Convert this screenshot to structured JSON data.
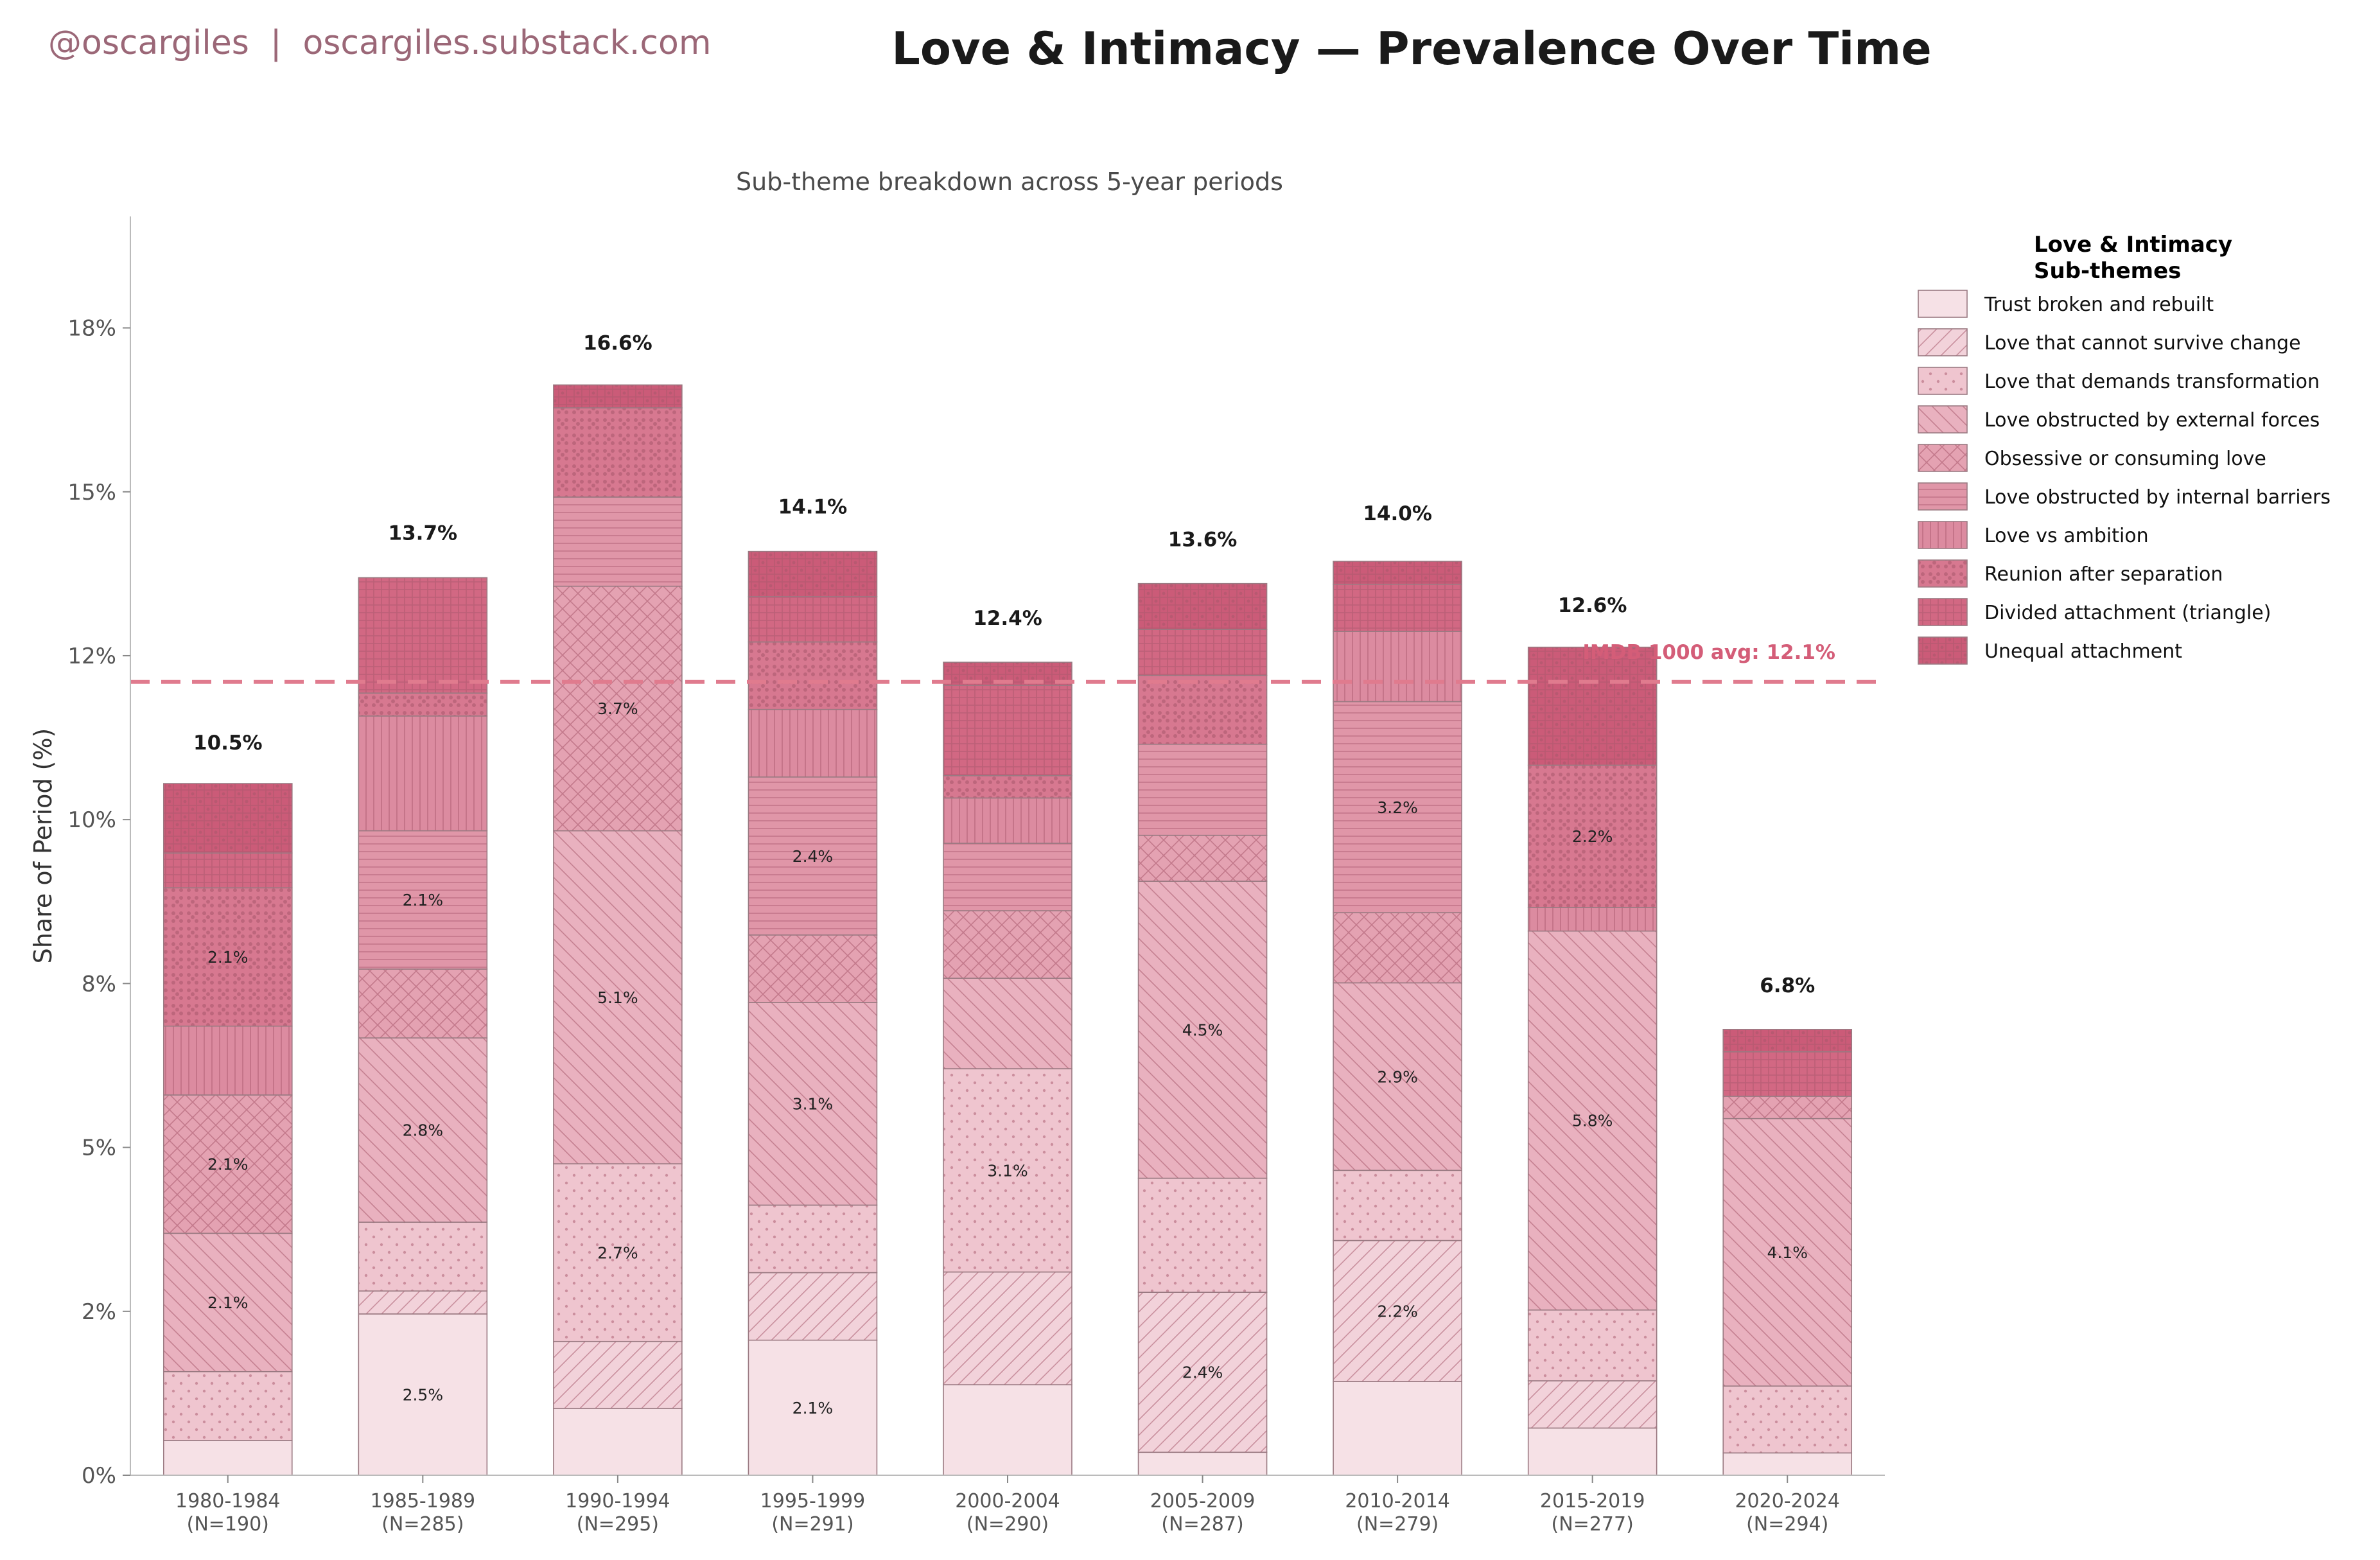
{
  "credit": "@oscargiles  |  oscargiles.substack.com",
  "colors": {
    "credit": "#9b6777",
    "avg_line": "#e07b8e",
    "avg_label": "#d45d78",
    "edge": "#9a7a82"
  },
  "chart_data": {
    "type": "bar",
    "stacked": true,
    "title": "Love & Intimacy — Prevalence Over Time",
    "subtitle": "Sub-theme breakdown across 5-year periods",
    "ylabel": "Share of Period (%)",
    "xlabel": "",
    "ylim": [
      0,
      19.2
    ],
    "yticks": [
      0,
      2.5,
      5,
      7.5,
      10,
      12.5,
      15,
      17.5
    ],
    "ytick_labels": [
      "0%",
      "2%",
      "5%",
      "8%",
      "10%",
      "12%",
      "15%",
      "18%"
    ],
    "grid": false,
    "legend_position": "right",
    "legend_title": [
      "Love & Intimacy",
      "Sub-themes"
    ],
    "categories": [
      "1980-1984",
      "1985-1989",
      "1990-1994",
      "1995-1999",
      "2000-2004",
      "2005-2009",
      "2010-2014",
      "2015-2019",
      "2020-2024"
    ],
    "category_counts": [
      "(N=190)",
      "(N=285)",
      "(N=295)",
      "(N=291)",
      "(N=290)",
      "(N=287)",
      "(N=279)",
      "(N=277)",
      "(N=294)"
    ],
    "totals": [
      10.5,
      13.7,
      16.6,
      14.1,
      12.4,
      13.6,
      14.0,
      12.6,
      6.8
    ],
    "total_labels": [
      "10.5%",
      "13.7%",
      "16.6%",
      "14.1%",
      "12.4%",
      "13.6%",
      "14.0%",
      "12.6%",
      "6.8%"
    ],
    "average": {
      "value": 12.1,
      "label": "IMDB 1000 avg: 12.1%"
    },
    "series": [
      {
        "name": "Trust broken and rebuilt",
        "color": "#f6e1e6",
        "pattern": "none",
        "values": [
          0.53,
          2.46,
          1.02,
          2.06,
          1.38,
          0.35,
          1.43,
          0.72,
          0.34
        ],
        "labels": [
          "",
          "2.5%",
          "",
          "2.1%",
          "",
          "",
          "",
          "",
          ""
        ]
      },
      {
        "name": "Love that cannot survive change",
        "color": "#f2d2da",
        "pattern": "diag-fwd",
        "values": [
          0,
          0.35,
          1.02,
          1.03,
          1.72,
          2.44,
          2.15,
          0.72,
          0
        ],
        "labels": [
          "",
          "",
          "",
          "",
          "",
          "2.4%",
          "2.2%",
          "",
          ""
        ]
      },
      {
        "name": "Love that demands transformation",
        "color": "#efc5cf",
        "pattern": "dots",
        "values": [
          1.05,
          1.05,
          2.71,
          1.03,
          3.1,
          1.74,
          1.07,
          1.08,
          1.02
        ],
        "labels": [
          "",
          "",
          "2.7%",
          "",
          "3.1%",
          "",
          "",
          "",
          ""
        ]
      },
      {
        "name": "Love obstructed by external forces",
        "color": "#e9b1bf",
        "pattern": "diag-back",
        "values": [
          2.11,
          2.81,
          5.08,
          3.09,
          1.38,
          4.53,
          2.86,
          5.78,
          4.08
        ],
        "labels": [
          "2.1%",
          "2.8%",
          "5.1%",
          "3.1%",
          "",
          "4.5%",
          "2.9%",
          "5.8%",
          "4.1%"
        ]
      },
      {
        "name": "Obsessive or consuming love",
        "color": "#e4a2b2",
        "pattern": "cross",
        "values": [
          2.11,
          1.05,
          3.73,
          1.03,
          1.03,
          0.7,
          1.07,
          0,
          0.34
        ],
        "labels": [
          "2.1%",
          "",
          "3.7%",
          "",
          "",
          "",
          "",
          "",
          ""
        ]
      },
      {
        "name": "Love obstructed by internal barriers",
        "color": "#e096a8",
        "pattern": "horiz",
        "values": [
          0,
          2.11,
          1.36,
          2.41,
          1.03,
          1.39,
          3.22,
          0,
          0
        ],
        "labels": [
          "",
          "2.1%",
          "",
          "2.4%",
          "",
          "",
          "3.2%",
          "",
          ""
        ]
      },
      {
        "name": "Love vs ambition",
        "color": "#dc8ba0",
        "pattern": "vert",
        "values": [
          1.05,
          1.75,
          0,
          1.03,
          0.69,
          0,
          1.07,
          0.36,
          0
        ],
        "labels": [
          "",
          "",
          "",
          "",
          "",
          "",
          "",
          "",
          ""
        ]
      },
      {
        "name": "Reunion after separation",
        "color": "#d77890",
        "pattern": "bigdots",
        "values": [
          2.11,
          0.35,
          1.36,
          1.03,
          0.34,
          1.05,
          0,
          2.17,
          0
        ],
        "labels": [
          "2.1%",
          "",
          "",
          "",
          "",
          "",
          "",
          "2.2%",
          ""
        ]
      },
      {
        "name": "Divided attachment (triangle)",
        "color": "#d26883",
        "pattern": "grid",
        "values": [
          0.53,
          1.76,
          0,
          0.69,
          1.38,
          0.7,
          0.72,
          0,
          0.68
        ],
        "labels": [
          "",
          "",
          "",
          "",
          "",
          "",
          "",
          "",
          ""
        ]
      },
      {
        "name": "Unequal attachment",
        "color": "#cb5b78",
        "pattern": "dense",
        "values": [
          1.06,
          0,
          0.35,
          0.69,
          0.35,
          0.7,
          0.35,
          1.8,
          0.34
        ],
        "labels": [
          "",
          "",
          "",
          "",
          "",
          "",
          "",
          "",
          ""
        ]
      }
    ]
  }
}
